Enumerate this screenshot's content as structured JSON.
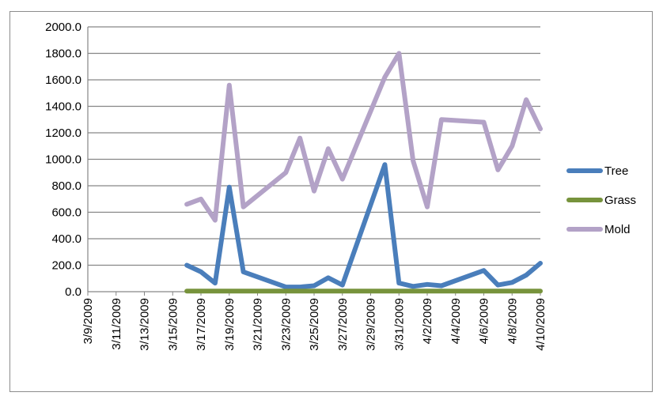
{
  "chart_data": {
    "type": "line",
    "title": "",
    "xlabel": "",
    "ylabel": "",
    "ylim": [
      0,
      2000
    ],
    "yticks": [
      "0.0",
      "200.0",
      "400.0",
      "600.0",
      "800.0",
      "1000.0",
      "1200.0",
      "1400.0",
      "1600.0",
      "1800.0",
      "2000.0"
    ],
    "x_start": "3/9/2009",
    "x_end": "4/10/2009",
    "xticks": [
      "3/9/2009",
      "3/11/2009",
      "3/13/2009",
      "3/15/2009",
      "3/17/2009",
      "3/19/2009",
      "3/21/2009",
      "3/23/2009",
      "3/25/2009",
      "3/27/2009",
      "3/29/2009",
      "3/31/2009",
      "4/2/2009",
      "4/4/2009",
      "4/6/2009",
      "4/8/2009",
      "4/10/2009"
    ],
    "grid": true,
    "legend_position": "right",
    "series": [
      {
        "name": "Tree",
        "color": "#4a7ebb",
        "points": [
          {
            "x": "3/16/2009",
            "y": 200
          },
          {
            "x": "3/17/2009",
            "y": 150
          },
          {
            "x": "3/18/2009",
            "y": 65
          },
          {
            "x": "3/19/2009",
            "y": 790
          },
          {
            "x": "3/20/2009",
            "y": 150
          },
          {
            "x": "3/23/2009",
            "y": 35
          },
          {
            "x": "3/24/2009",
            "y": 35
          },
          {
            "x": "3/25/2009",
            "y": 45
          },
          {
            "x": "3/26/2009",
            "y": 105
          },
          {
            "x": "3/27/2009",
            "y": 50
          },
          {
            "x": "3/30/2009",
            "y": 960
          },
          {
            "x": "3/31/2009",
            "y": 65
          },
          {
            "x": "4/1/2009",
            "y": 40
          },
          {
            "x": "4/2/2009",
            "y": 55
          },
          {
            "x": "4/3/2009",
            "y": 45
          },
          {
            "x": "4/6/2009",
            "y": 160
          },
          {
            "x": "4/7/2009",
            "y": 50
          },
          {
            "x": "4/8/2009",
            "y": 70
          },
          {
            "x": "4/9/2009",
            "y": 125
          },
          {
            "x": "4/10/2009",
            "y": 215
          }
        ]
      },
      {
        "name": "Grass",
        "color": "#77933c",
        "points": [
          {
            "x": "3/16/2009",
            "y": 5
          },
          {
            "x": "3/19/2009",
            "y": 5
          },
          {
            "x": "3/23/2009",
            "y": 5
          },
          {
            "x": "3/27/2009",
            "y": 5
          },
          {
            "x": "3/31/2009",
            "y": 5
          },
          {
            "x": "4/3/2009",
            "y": 5
          },
          {
            "x": "4/7/2009",
            "y": 5
          },
          {
            "x": "4/10/2009",
            "y": 5
          }
        ]
      },
      {
        "name": "Mold",
        "color": "#b3a2c7",
        "points": [
          {
            "x": "3/16/2009",
            "y": 660
          },
          {
            "x": "3/17/2009",
            "y": 700
          },
          {
            "x": "3/18/2009",
            "y": 540
          },
          {
            "x": "3/19/2009",
            "y": 1560
          },
          {
            "x": "3/20/2009",
            "y": 640
          },
          {
            "x": "3/23/2009",
            "y": 900
          },
          {
            "x": "3/24/2009",
            "y": 1160
          },
          {
            "x": "3/25/2009",
            "y": 760
          },
          {
            "x": "3/26/2009",
            "y": 1080
          },
          {
            "x": "3/27/2009",
            "y": 850
          },
          {
            "x": "3/30/2009",
            "y": 1620
          },
          {
            "x": "3/31/2009",
            "y": 1800
          },
          {
            "x": "4/1/2009",
            "y": 990
          },
          {
            "x": "4/2/2009",
            "y": 640
          },
          {
            "x": "4/3/2009",
            "y": 1300
          },
          {
            "x": "4/6/2009",
            "y": 1280
          },
          {
            "x": "4/7/2009",
            "y": 920
          },
          {
            "x": "4/8/2009",
            "y": 1100
          },
          {
            "x": "4/9/2009",
            "y": 1450
          },
          {
            "x": "4/10/2009",
            "y": 1230
          }
        ]
      }
    ]
  }
}
